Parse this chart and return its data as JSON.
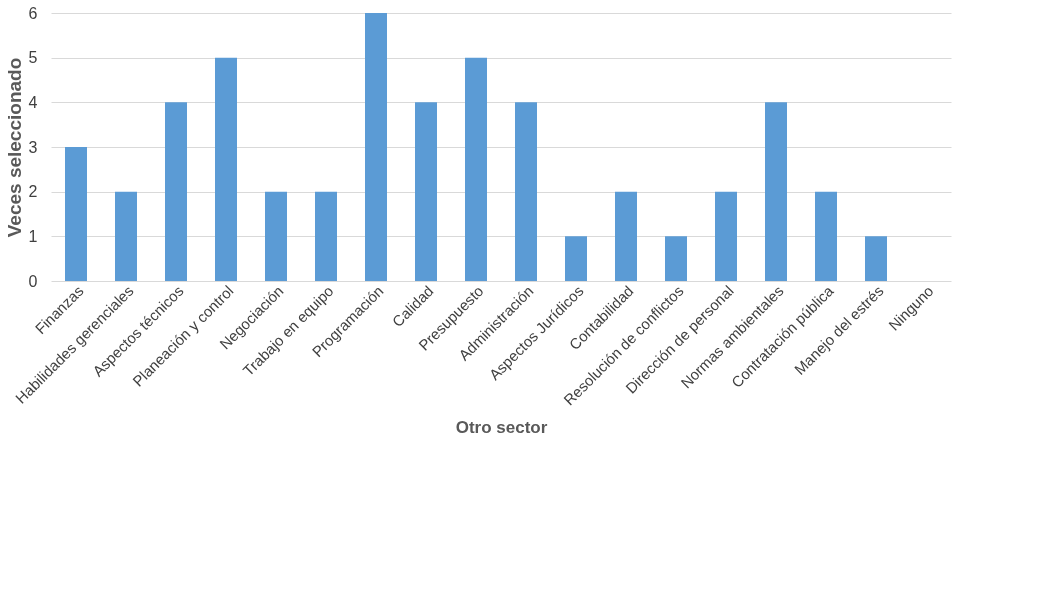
{
  "chart_data": {
    "type": "bar",
    "xlabel": "Otro sector",
    "ylabel": "Veces seleccionado",
    "categories": [
      "Finanzas",
      "Habilidades gerenciales",
      "Aspectos técnicos",
      "Planeación y control",
      "Negociación",
      "Trabajo en equipo",
      "Programación",
      "Calidad",
      "Presupuesto",
      "Administración",
      "Aspectos Jurídicos",
      "Contabilidad",
      "Resolución de conflictos",
      "Dirección de personal",
      "Normas ambientales",
      "Contratación pública",
      "Manejo del estrés",
      "Ninguno"
    ],
    "values": [
      3,
      2,
      4,
      5,
      2,
      2,
      6,
      4,
      5,
      4,
      1,
      2,
      1,
      2,
      4,
      2,
      1,
      0
    ],
    "color": "#5b9bd5",
    "ylim": [
      0,
      6
    ],
    "yticks": [
      0,
      1,
      2,
      3,
      4,
      5,
      6
    ],
    "grid": "y"
  }
}
